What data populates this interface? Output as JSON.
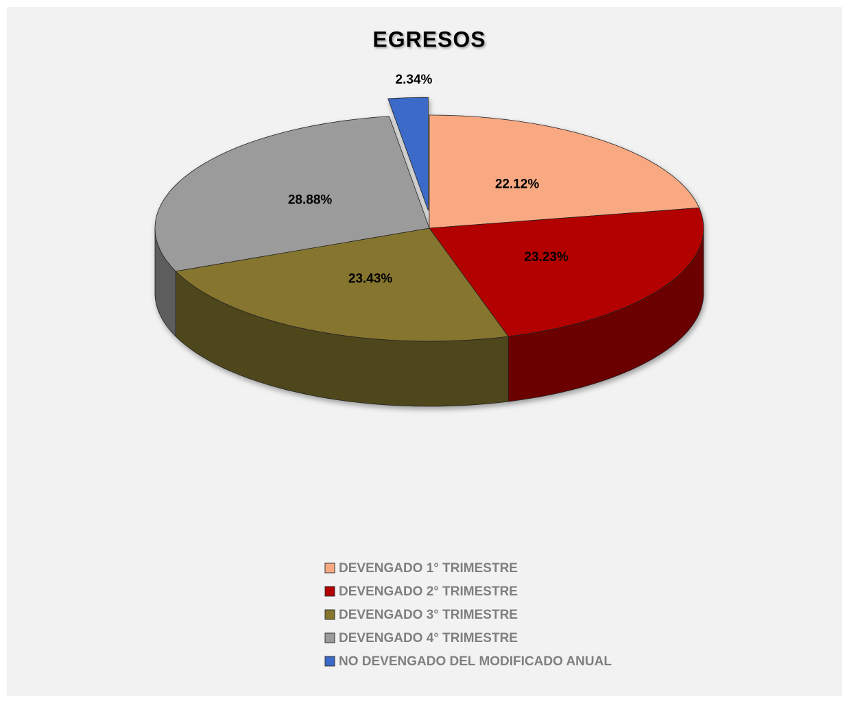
{
  "chart_data": {
    "type": "pie3d",
    "title": "EGRESOS",
    "categories": [
      "DEVENGADO 1° TRIMESTRE",
      "DEVENGADO 2° TRIMESTRE",
      "DEVENGADO 3° TRIMESTRE",
      "DEVENGADO 4° TRIMESTRE",
      "NO DEVENGADO DEL MODIFICADO ANUAL"
    ],
    "values": [
      22.12,
      23.23,
      23.43,
      28.88,
      2.34
    ],
    "value_labels": [
      "22.12%",
      "23.23%",
      "23.43%",
      "28.88%",
      "2.34%"
    ],
    "colors": [
      "#f9a982",
      "#b30000",
      "#86752d",
      "#9b9b9b",
      "#3a6ac9"
    ],
    "legend": "bottom"
  }
}
